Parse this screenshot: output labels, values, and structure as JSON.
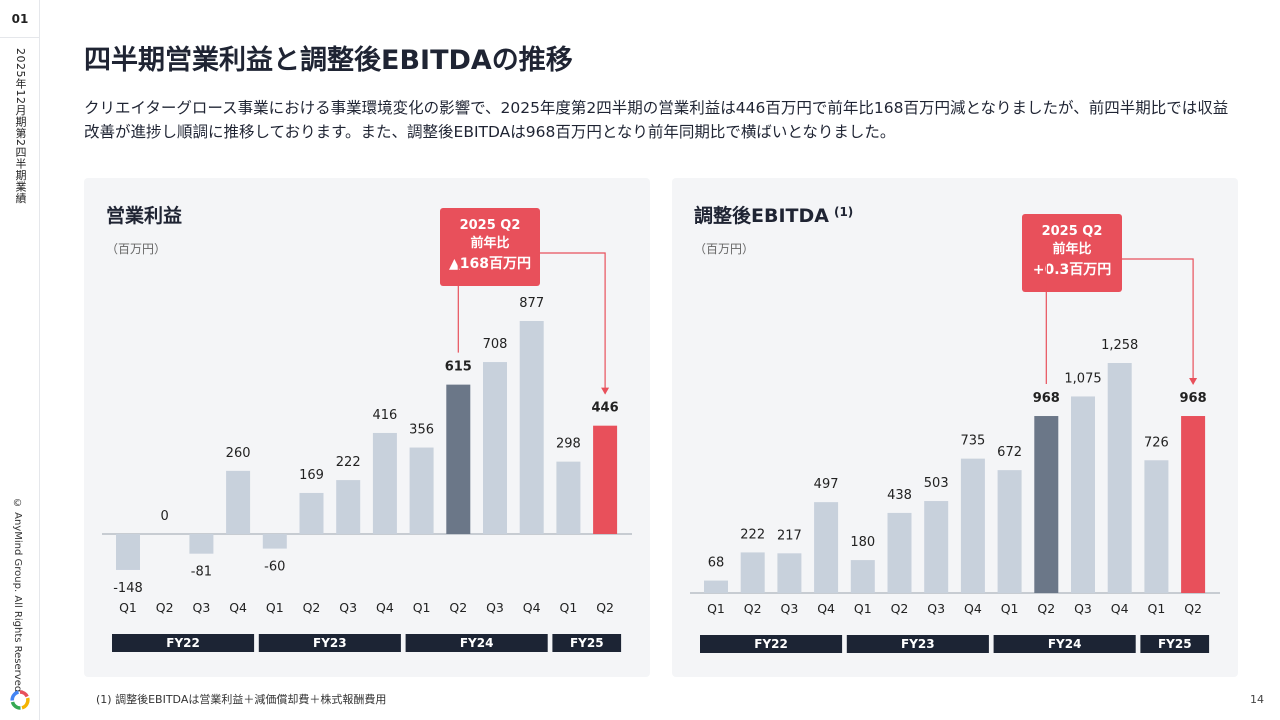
{
  "sidebar": {
    "page_section": "01",
    "vertical_title": "2025年12月期第2四半期業績",
    "copyright": "© AnyMind Group. All Rights Reserved."
  },
  "title": "四半期営業利益と調整後EBITDAの推移",
  "lead": "クリエイターグロース事業における事業環境変化の影響で、2025年度第2四半期の営業利益は446百万円で前年比168百万円減となりましたが、前四半期比では収益改善が進捗し順調に推移しております。また、調整後EBITDAは968百万円となり前年同期比で横ばいとなりました。",
  "footnote": "(1) 調整後EBITDAは営業利益＋減価償却費＋株式報酬費用",
  "page_number": "14",
  "colors": {
    "bar": "#c8d1dc",
    "highlight_prev": "#6b7788",
    "highlight_current": "#e8505b",
    "callout": "#e8505b",
    "fy_label_bg": "#1c2434"
  },
  "chart_data": [
    {
      "type": "bar",
      "title": "営業利益",
      "title_superscript": "",
      "unit": "（百万円）",
      "categories": [
        "Q1",
        "Q2",
        "Q3",
        "Q4",
        "Q1",
        "Q2",
        "Q3",
        "Q4",
        "Q1",
        "Q2",
        "Q3",
        "Q4",
        "Q1",
        "Q2"
      ],
      "value_labels": [
        "-148",
        "0",
        "-81",
        "260",
        "-60",
        "169",
        "222",
        "416",
        "356",
        "615",
        "708",
        "877",
        "298",
        "446"
      ],
      "values": [
        -148,
        0,
        -81,
        260,
        -60,
        169,
        222,
        416,
        356,
        615,
        708,
        877,
        298,
        446
      ],
      "fiscal_years": [
        {
          "label": "FY22",
          "start": 0,
          "end": 3
        },
        {
          "label": "FY23",
          "start": 4,
          "end": 7
        },
        {
          "label": "FY24",
          "start": 8,
          "end": 11
        },
        {
          "label": "FY25",
          "start": 12,
          "end": 13
        }
      ],
      "highlight_previous_index": 9,
      "highlight_current_index": 13,
      "callout": {
        "line1": "2025 Q2",
        "line2": "前年比",
        "line3": "▲168百万円"
      },
      "ylim": [
        -148,
        877
      ]
    },
    {
      "type": "bar",
      "title": "調整後EBITDA",
      "title_superscript": "(1)",
      "unit": "（百万円）",
      "categories": [
        "Q1",
        "Q2",
        "Q3",
        "Q4",
        "Q1",
        "Q2",
        "Q3",
        "Q4",
        "Q1",
        "Q2",
        "Q3",
        "Q4",
        "Q1",
        "Q2"
      ],
      "value_labels": [
        "68",
        "222",
        "217",
        "497",
        "180",
        "438",
        "503",
        "735",
        "672",
        "968",
        "1,075",
        "1,258",
        "726",
        "968"
      ],
      "values": [
        68,
        222,
        217,
        497,
        180,
        438,
        503,
        735,
        672,
        968,
        1075,
        1258,
        726,
        968
      ],
      "fiscal_years": [
        {
          "label": "FY22",
          "start": 0,
          "end": 3
        },
        {
          "label": "FY23",
          "start": 4,
          "end": 7
        },
        {
          "label": "FY24",
          "start": 8,
          "end": 11
        },
        {
          "label": "FY25",
          "start": 12,
          "end": 13
        }
      ],
      "highlight_previous_index": 9,
      "highlight_current_index": 13,
      "callout": {
        "line1": "2025 Q2",
        "line2": "前年比",
        "line3": "+0.3百万円"
      },
      "ylim": [
        0,
        1258
      ]
    }
  ]
}
